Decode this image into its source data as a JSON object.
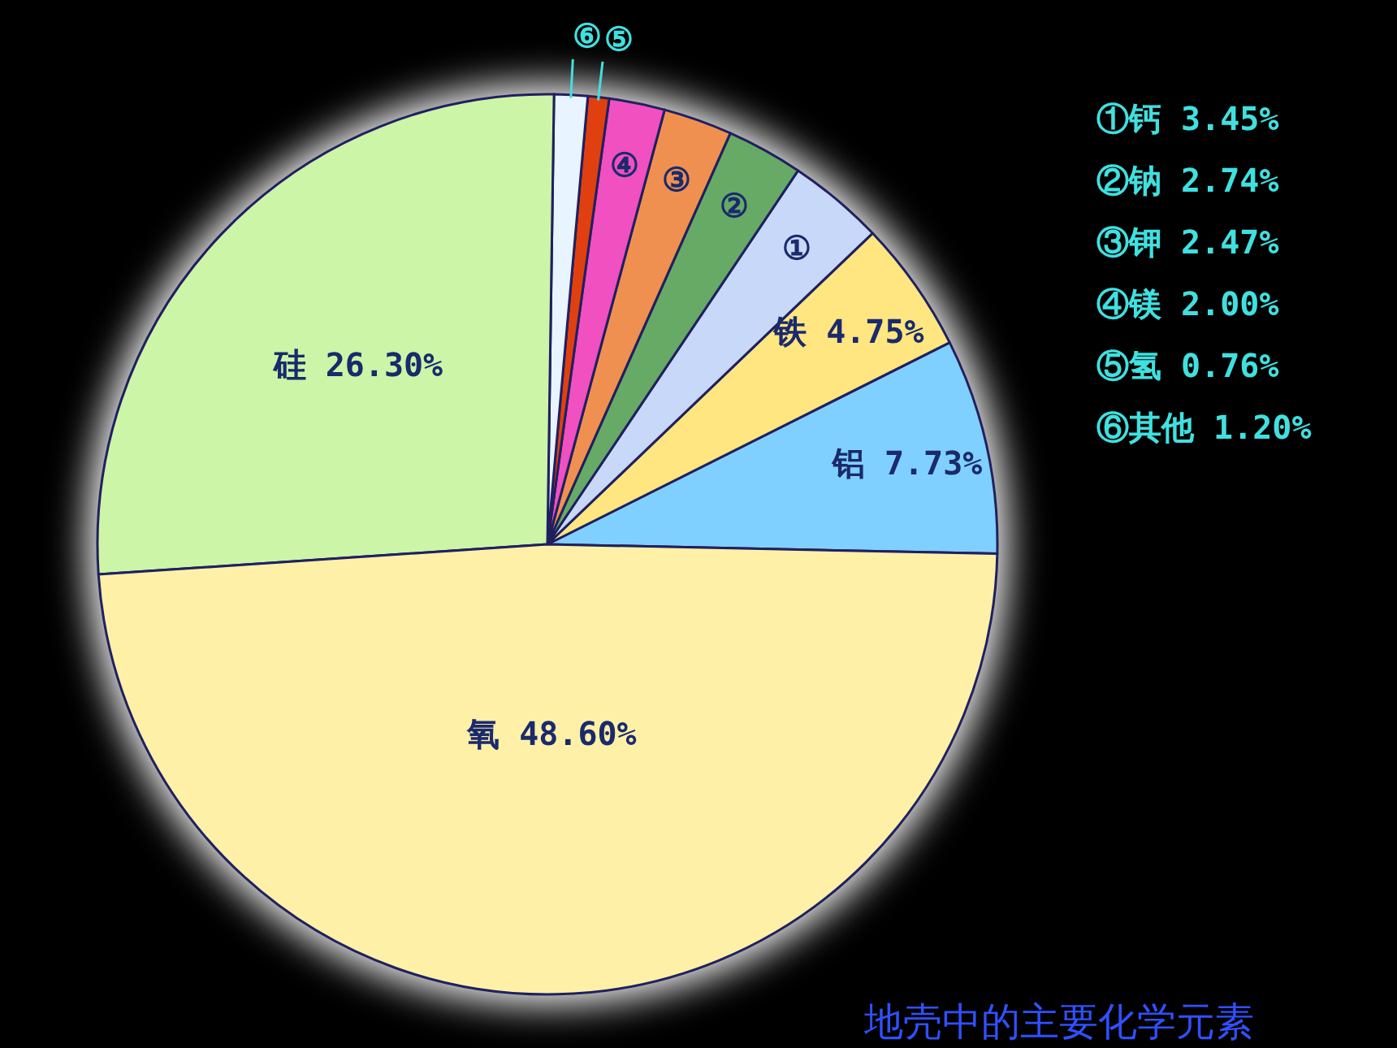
{
  "chart_data": {
    "type": "pie",
    "title": "地壳中的主要化学元素",
    "categories": [
      "铝",
      "铁",
      "①",
      "②",
      "③",
      "④",
      "⑤",
      "⑥",
      "硅",
      "氧"
    ],
    "values": [
      7.73,
      4.75,
      3.45,
      2.74,
      2.47,
      2.0,
      0.76,
      1.2,
      26.3,
      48.6
    ],
    "colors": [
      "#80d0ff",
      "#ffe680",
      "#c8d8f8",
      "#66aa66",
      "#f09050",
      "#f050c0",
      "#e04010",
      "#e8f4ff",
      "#ccf5a8",
      "#fff0a8"
    ],
    "value_labels": [
      "7.73%",
      "4.75%",
      null,
      null,
      null,
      null,
      null,
      null,
      "26.30%",
      "48.60%"
    ],
    "annotations": [
      "①钙 3.45%",
      "②钠 2.74%",
      "③钾 2.47%",
      "④镁 2.00%",
      "⑤氢 0.76%",
      "⑥其他 1.20%"
    ]
  }
}
